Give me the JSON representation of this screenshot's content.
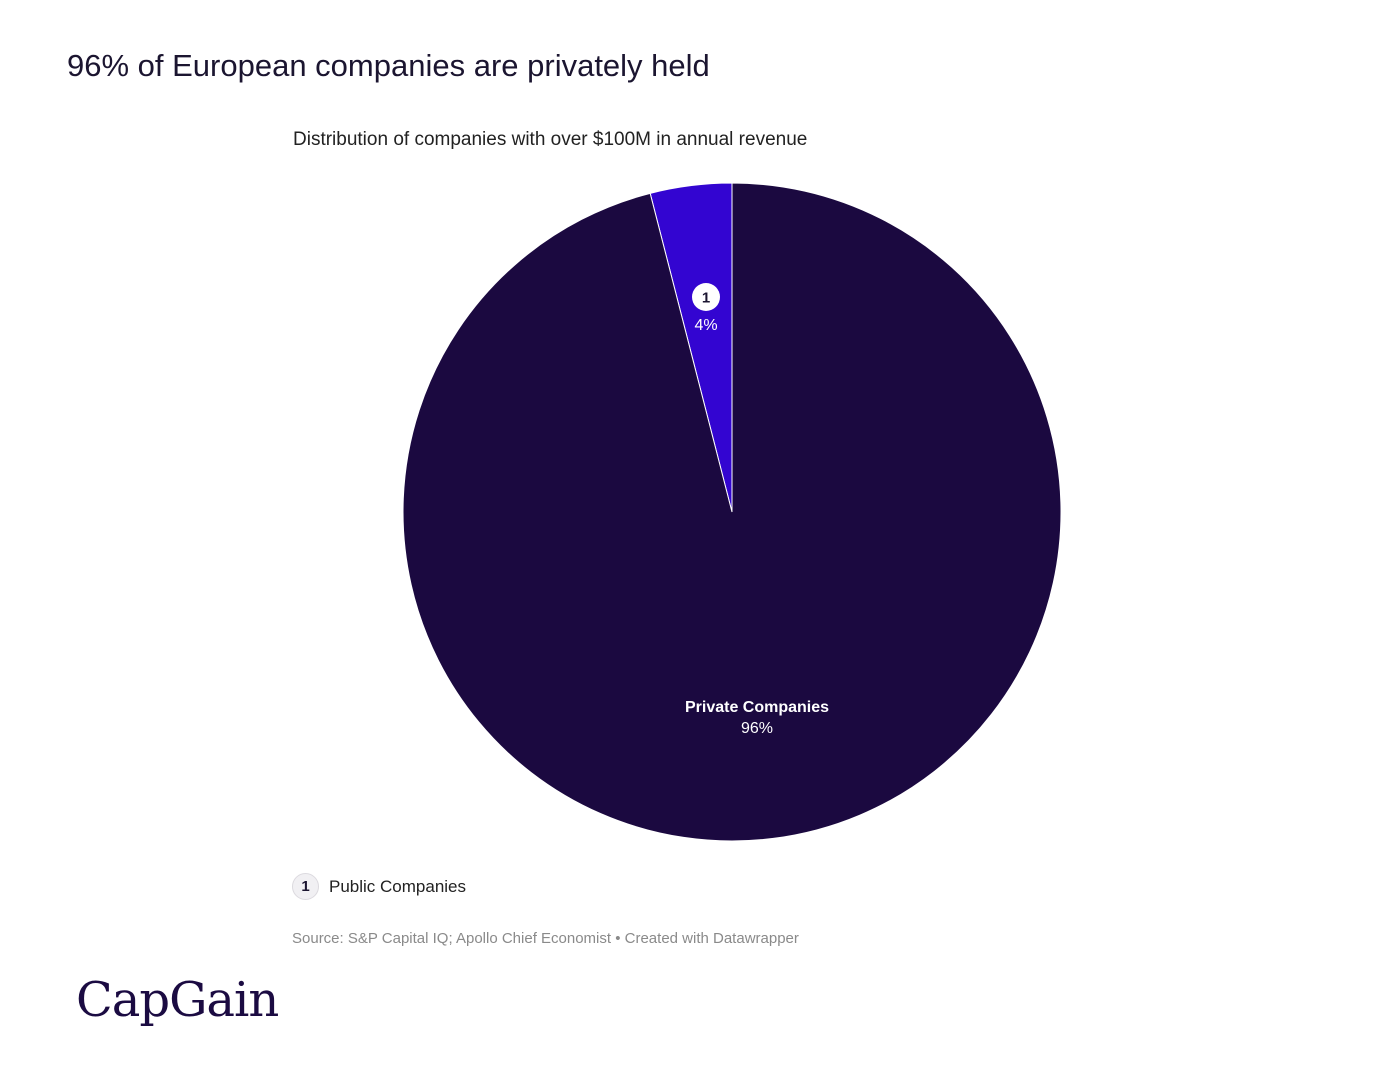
{
  "header": {
    "title": "96% of European companies are privately held",
    "subtitle": "Distribution of companies with over $100M in annual revenue"
  },
  "chart_data": {
    "type": "pie",
    "title": "96% of European companies are privately held",
    "subtitle": "Distribution of companies with over $100M in annual revenue",
    "slices": [
      {
        "name": "Public Companies",
        "value": 4,
        "label": "4%",
        "marker": "1",
        "color": "#3305d1"
      },
      {
        "name": "Private Companies",
        "value": 96,
        "label": "96%",
        "color": "#1b0940"
      }
    ],
    "legend": [
      {
        "marker": "1",
        "label": "Public Companies"
      }
    ]
  },
  "footer": {
    "source": "Source: S&P Capital IQ; Apollo Chief Economist • Created with Datawrapper",
    "logo": "CapGain"
  }
}
